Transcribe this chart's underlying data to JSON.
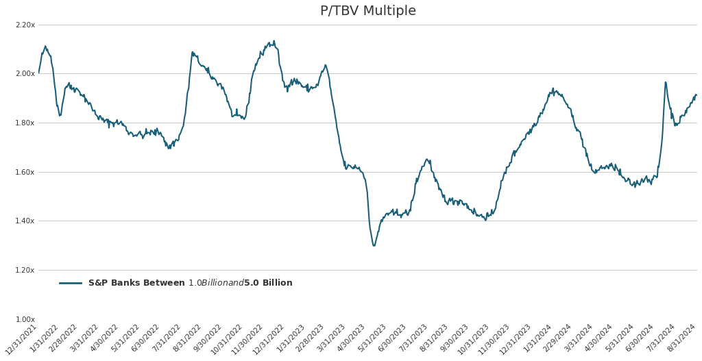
{
  "title": "P/TBV Multiple",
  "line_color": "#1a5f7a",
  "line_width": 1.5,
  "background_color": "#ffffff",
  "legend_label": "S&P Banks Between $1.0 Billion and $5.0 Billion",
  "ylim": [
    1.0,
    2.2
  ],
  "yticks": [
    1.0,
    1.2,
    1.4,
    1.6,
    1.8,
    2.0,
    2.2
  ],
  "ytick_labels": [
    "1.00x",
    "1.20x",
    "1.40x",
    "1.60x",
    "1.80x",
    "2.00x",
    "2.20x"
  ],
  "grid_color": "#cccccc",
  "tick_color": "#333333",
  "title_fontsize": 14,
  "tick_fontsize": 7.5,
  "legend_fontsize": 9
}
